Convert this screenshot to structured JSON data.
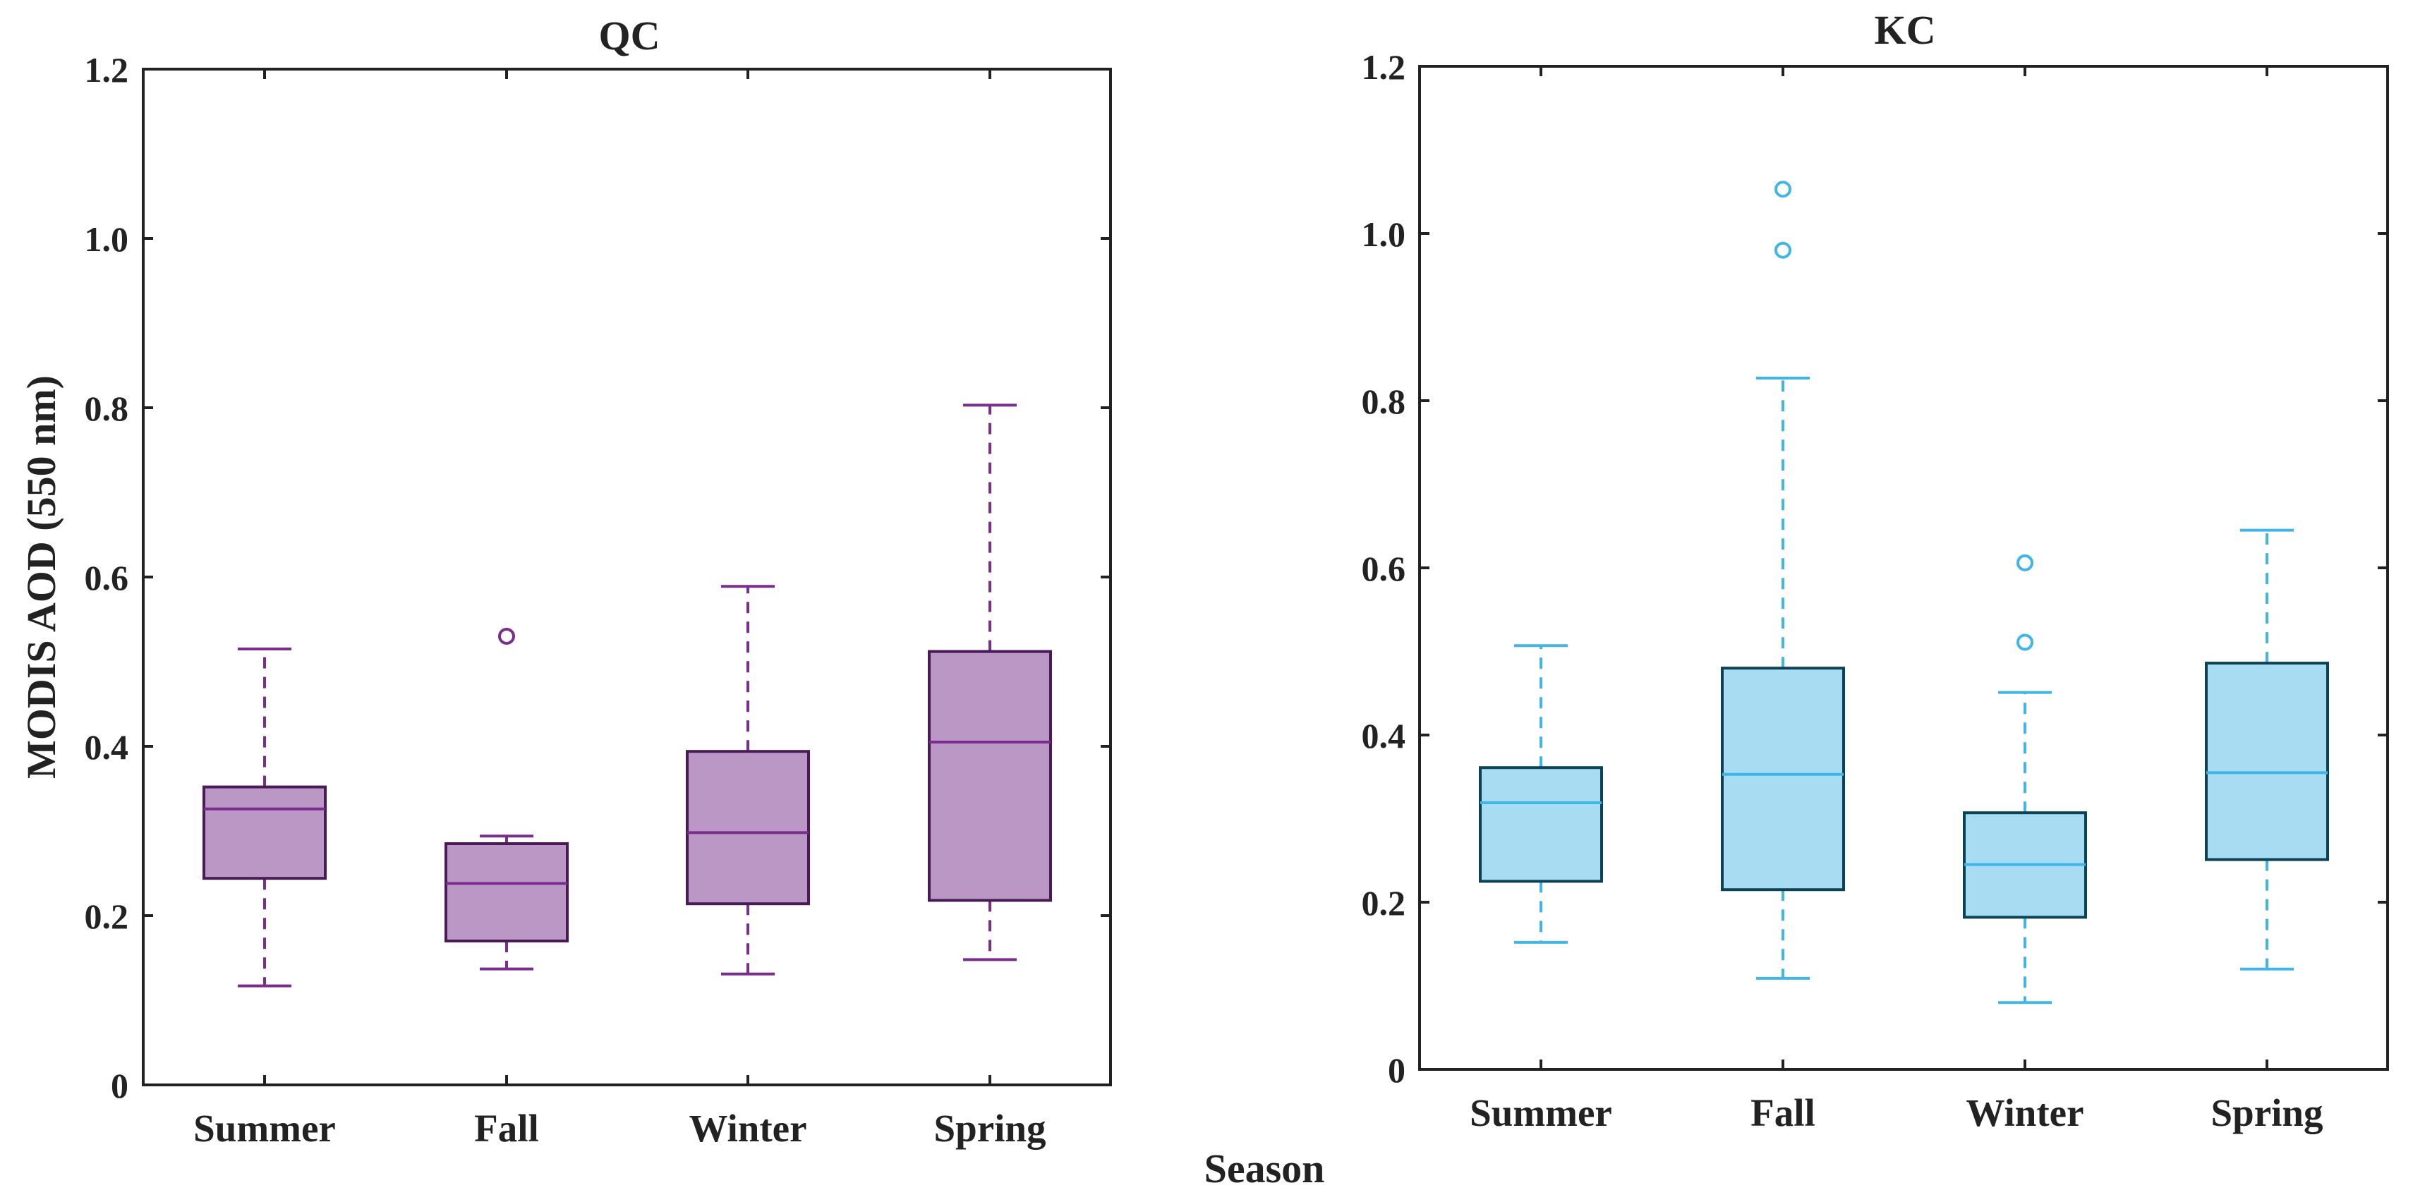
{
  "figure": {
    "xlabel": "Season",
    "ylabel": "MODIS AOD (550 nm)"
  },
  "chart_data": [
    {
      "type": "box",
      "title": "QC",
      "categories": [
        "Summer",
        "Fall",
        "Winter",
        "Spring"
      ],
      "ylim": [
        0,
        1.2
      ],
      "yticks": [
        "0",
        "0.2",
        "0.4",
        "0.6",
        "0.8",
        "1.0",
        "1.2"
      ],
      "ytick_values": [
        0,
        0.2,
        0.4,
        0.6,
        0.8,
        1.0,
        1.2
      ],
      "colors": {
        "fill": "#bb97c6",
        "edge": "#4a1a57",
        "accent": "#7a2d8c"
      },
      "boxes": [
        {
          "category": "Summer",
          "whisker_low": 0.117,
          "q1": 0.244,
          "median": 0.326,
          "q3": 0.352,
          "whisker_high": 0.515,
          "outliers": []
        },
        {
          "category": "Fall",
          "whisker_low": 0.137,
          "q1": 0.17,
          "median": 0.238,
          "q3": 0.285,
          "whisker_high": 0.294,
          "outliers": [
            0.53
          ]
        },
        {
          "category": "Winter",
          "whisker_low": 0.131,
          "q1": 0.214,
          "median": 0.298,
          "q3": 0.394,
          "whisker_high": 0.589,
          "outliers": []
        },
        {
          "category": "Spring",
          "whisker_low": 0.148,
          "q1": 0.218,
          "median": 0.405,
          "q3": 0.512,
          "whisker_high": 0.803,
          "outliers": []
        }
      ]
    },
    {
      "type": "box",
      "title": "KC",
      "categories": [
        "Summer",
        "Fall",
        "Winter",
        "Spring"
      ],
      "ylim": [
        0,
        1.2
      ],
      "yticks": [
        "0",
        "0.2",
        "0.4",
        "0.6",
        "0.8",
        "1.0",
        "1.2"
      ],
      "ytick_values": [
        0,
        0.2,
        0.4,
        0.6,
        0.8,
        1.0,
        1.2
      ],
      "colors": {
        "fill": "#a8dcf3",
        "edge": "#0c4256",
        "accent": "#41b6e6"
      },
      "boxes": [
        {
          "category": "Summer",
          "whisker_low": 0.152,
          "q1": 0.225,
          "median": 0.319,
          "q3": 0.361,
          "whisker_high": 0.507,
          "outliers": []
        },
        {
          "category": "Fall",
          "whisker_low": 0.109,
          "q1": 0.215,
          "median": 0.353,
          "q3": 0.48,
          "whisker_high": 0.827,
          "outliers": [
            0.98,
            1.053
          ]
        },
        {
          "category": "Winter",
          "whisker_low": 0.08,
          "q1": 0.182,
          "median": 0.245,
          "q3": 0.307,
          "whisker_high": 0.451,
          "outliers": [
            0.511,
            0.606
          ]
        },
        {
          "category": "Spring",
          "whisker_low": 0.12,
          "q1": 0.251,
          "median": 0.355,
          "q3": 0.486,
          "whisker_high": 0.645,
          "outliers": []
        }
      ]
    }
  ]
}
